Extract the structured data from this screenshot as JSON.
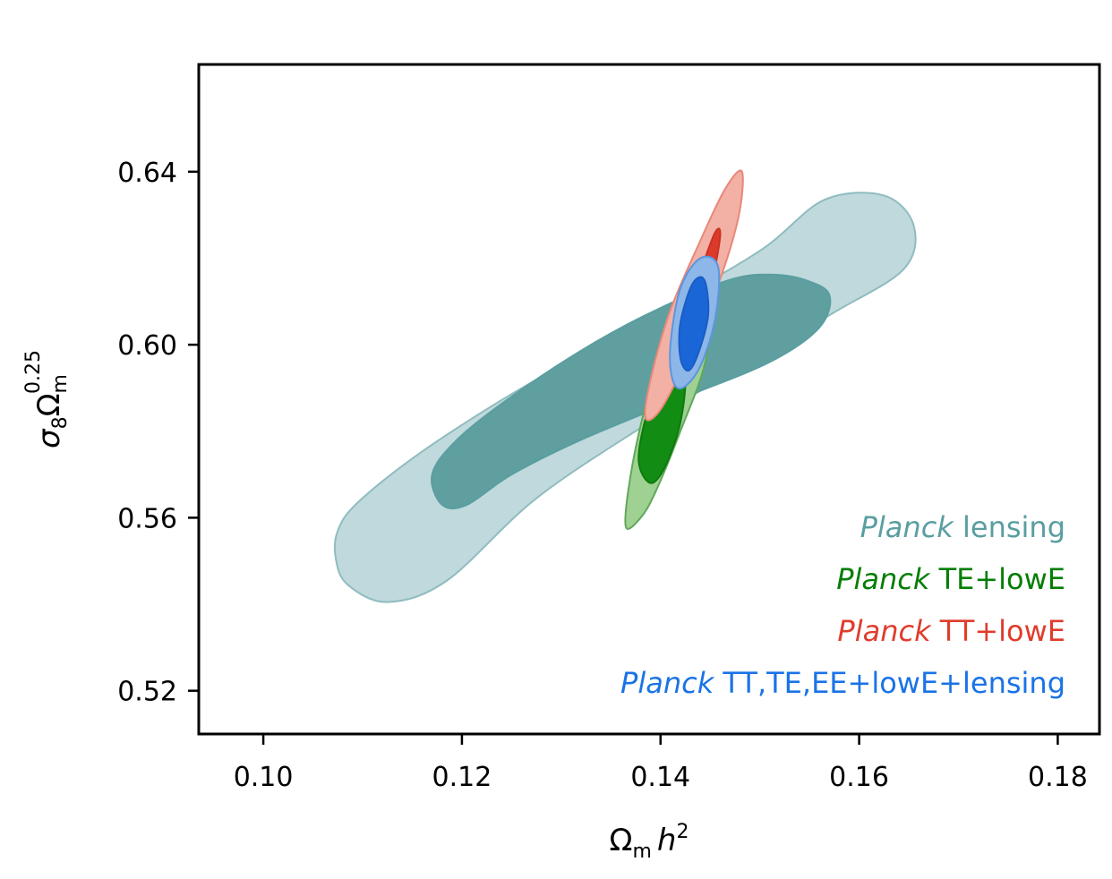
{
  "chart_data": {
    "type": "contour",
    "xlabel_main": "Ω",
    "xlabel_sub": "m",
    "xlabel_var": "h",
    "xlabel_sup": "2",
    "ylabel_sigma": "σ",
    "ylabel_sigma_sub": "8",
    "ylabel_omega": "Ω",
    "ylabel_omega_sub": "m",
    "ylabel_sup": "0.25",
    "xlim": [
      0.0935,
      0.1842
    ],
    "ylim": [
      0.51,
      0.6648
    ],
    "xticks": [
      {
        "value": 0.1,
        "label": "0.10"
      },
      {
        "value": 0.12,
        "label": "0.12"
      },
      {
        "value": 0.14,
        "label": "0.14"
      },
      {
        "value": 0.16,
        "label": "0.16"
      },
      {
        "value": 0.18,
        "label": "0.18"
      }
    ],
    "yticks": [
      {
        "value": 0.52,
        "label": "0.52"
      },
      {
        "value": 0.56,
        "label": "0.56"
      },
      {
        "value": 0.6,
        "label": "0.60"
      },
      {
        "value": 0.64,
        "label": "0.64"
      }
    ],
    "legend_position": "lower-right",
    "series": [
      {
        "name_italic": "Planck",
        "name_rest": " lensing",
        "text_color": "#5a9ea0",
        "contours": [
          {
            "level": "95%",
            "fill": "#c0d9dc",
            "stroke": "#8fbcbf",
            "points": [
              [
                0.1075,
                0.557
              ],
              [
                0.1095,
                0.5635
              ],
              [
                0.1155,
                0.5745
              ],
              [
                0.1235,
                0.5865
              ],
              [
                0.1325,
                0.5985
              ],
              [
                0.1425,
                0.6115
              ],
              [
                0.1505,
                0.6225
              ],
              [
                0.1565,
                0.6335
              ],
              [
                0.1625,
                0.6345
              ],
              [
                0.1655,
                0.6275
              ],
              [
                0.1645,
                0.6175
              ],
              [
                0.1575,
                0.6075
              ],
              [
                0.1485,
                0.5955
              ],
              [
                0.1385,
                0.5815
              ],
              [
                0.1275,
                0.5645
              ],
              [
                0.1185,
                0.5455
              ],
              [
                0.1125,
                0.5405
              ],
              [
                0.1085,
                0.5445
              ],
              [
                0.1073,
                0.5505
              ]
            ]
          },
          {
            "level": "68%",
            "fill": "#5f9fa0",
            "stroke": "#5a9ea0",
            "points": [
              [
                0.117,
                0.57
              ],
              [
                0.1195,
                0.578
              ],
              [
                0.125,
                0.588
              ],
              [
                0.133,
                0.6
              ],
              [
                0.14,
                0.6085
              ],
              [
                0.147,
                0.615
              ],
              [
                0.151,
                0.6162
              ],
              [
                0.1545,
                0.615
              ],
              [
                0.157,
                0.6115
              ],
              [
                0.156,
                0.604
              ],
              [
                0.151,
                0.596
              ],
              [
                0.142,
                0.5875
              ],
              [
                0.132,
                0.578
              ],
              [
                0.125,
                0.57
              ],
              [
                0.1205,
                0.563
              ],
              [
                0.118,
                0.563
              ]
            ]
          }
        ]
      },
      {
        "name_italic": "Planck",
        "name_rest": " TE+lowE",
        "text_color": "#047e04",
        "contours": [
          {
            "level": "95%",
            "fill": "#9fd192",
            "stroke": "#5fa85a",
            "points": [
              [
                0.1365,
                0.558
              ],
              [
                0.137,
                0.57
              ],
              [
                0.1385,
                0.586
              ],
              [
                0.1405,
                0.601
              ],
              [
                0.1422,
                0.612
              ],
              [
                0.144,
                0.617
              ],
              [
                0.1452,
                0.612
              ],
              [
                0.1445,
                0.596
              ],
              [
                0.142,
                0.58
              ],
              [
                0.1395,
                0.566
              ],
              [
                0.138,
                0.56
              ]
            ]
          },
          {
            "level": "68%",
            "fill": "#128c12",
            "stroke": "#0e7a0e",
            "points": [
              [
                0.1378,
                0.573
              ],
              [
                0.1385,
                0.583
              ],
              [
                0.14,
                0.592
              ],
              [
                0.1415,
                0.596
              ],
              [
                0.1425,
                0.593
              ],
              [
                0.142,
                0.582
              ],
              [
                0.1405,
                0.572
              ],
              [
                0.139,
                0.568
              ]
            ]
          }
        ]
      },
      {
        "name_italic": "Planck",
        "name_rest": " TT+lowE",
        "text_color": "#e03c2c",
        "contours": [
          {
            "level": "95%",
            "fill": "#f3b0a4",
            "stroke": "#e9877a",
            "points": [
              [
                0.1385,
                0.583
              ],
              [
                0.139,
                0.592
              ],
              [
                0.141,
                0.608
              ],
              [
                0.144,
                0.624
              ],
              [
                0.1465,
                0.636
              ],
              [
                0.1482,
                0.64
              ],
              [
                0.1478,
                0.629
              ],
              [
                0.1455,
                0.612
              ],
              [
                0.1425,
                0.596
              ],
              [
                0.14,
                0.585
              ]
            ]
          },
          {
            "level": "68%",
            "fill": "#dc3a2a",
            "stroke": "#c83222",
            "points": [
              [
                0.141,
                0.595
              ],
              [
                0.142,
                0.605
              ],
              [
                0.144,
                0.617
              ],
              [
                0.1455,
                0.626
              ],
              [
                0.146,
                0.625
              ],
              [
                0.145,
                0.613
              ],
              [
                0.1432,
                0.601
              ],
              [
                0.1418,
                0.594
              ]
            ]
          }
        ]
      },
      {
        "name_italic": "Planck",
        "name_rest": " TT,TE,EE+lowE+lensing",
        "text_color": "#1a73e6",
        "contours": [
          {
            "level": "95%",
            "fill": "#8db7e8",
            "stroke": "#5b96de",
            "points": [
              [
                0.1412,
                0.592
              ],
              [
                0.141,
                0.6
              ],
              [
                0.142,
                0.613
              ],
              [
                0.144,
                0.62
              ],
              [
                0.1458,
                0.618
              ],
              [
                0.1455,
                0.606
              ],
              [
                0.144,
                0.595
              ],
              [
                0.1422,
                0.59
              ]
            ]
          },
          {
            "level": "68%",
            "fill": "#1a66d6",
            "stroke": "#1a5cc4",
            "points": [
              [
                0.142,
                0.597
              ],
              [
                0.142,
                0.605
              ],
              [
                0.1432,
                0.614
              ],
              [
                0.1444,
                0.615
              ],
              [
                0.1448,
                0.607
              ],
              [
                0.1438,
                0.598
              ],
              [
                0.1428,
                0.594
              ]
            ]
          }
        ]
      }
    ]
  }
}
